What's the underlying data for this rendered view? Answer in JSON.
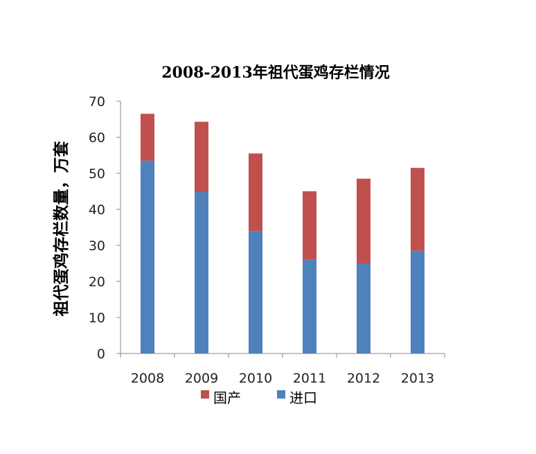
{
  "chart_data": {
    "type": "bar",
    "stacked": true,
    "title": "2008-2013年祖代蛋鸡存栏情况",
    "xlabel": "",
    "ylabel": "祖代蛋鸡存栏数量，万套",
    "categories": [
      "2008",
      "2009",
      "2010",
      "2011",
      "2012",
      "2013"
    ],
    "series": [
      {
        "name": "进口",
        "color": "#4F81BD",
        "values": [
          53.5,
          44.8,
          34,
          26,
          25,
          28.5
        ]
      },
      {
        "name": "国产",
        "color": "#C0504D",
        "values": [
          13,
          19.5,
          21.5,
          19,
          23.5,
          23
        ]
      }
    ],
    "ylim": [
      0,
      70
    ],
    "yticks": [
      0,
      10,
      20,
      30,
      40,
      50,
      60,
      70
    ],
    "grid": false,
    "legend_position": "bottom",
    "legend_order": [
      "国产",
      "进口"
    ]
  }
}
